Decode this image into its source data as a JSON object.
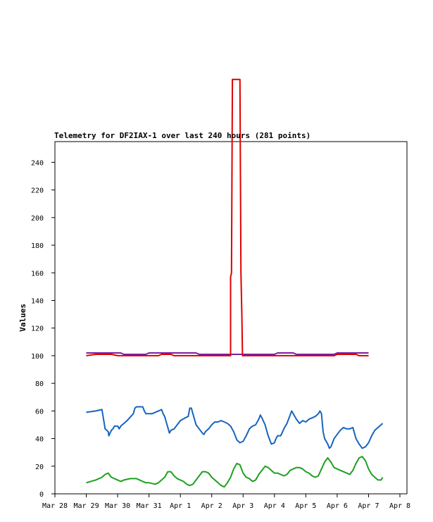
{
  "chart_data": {
    "type": "line",
    "title": "Telemetry for DF2IAX-1 over last 240 hours (281 points)",
    "xlabel": "",
    "ylabel": "Values",
    "x_tick_labels": [
      "Mar 28",
      "Mar 29",
      "Mar 30",
      "Mar 31",
      "Apr 1",
      "Apr 2",
      "Apr 3",
      "Apr 4",
      "Apr 5",
      "Apr 6",
      "Apr 7",
      "Apr 8"
    ],
    "x_unit": "days",
    "xlim": [
      0,
      11
    ],
    "y_ticks": [
      0,
      20,
      40,
      60,
      80,
      100,
      120,
      140,
      160,
      180,
      200,
      220,
      240
    ],
    "ylim": [
      0,
      255
    ],
    "grid": false,
    "legend": "none",
    "series": [
      {
        "color": "#7a1fa2",
        "points": [
          [
            1.0,
            102
          ],
          [
            2.1,
            102
          ],
          [
            2.2,
            101
          ],
          [
            2.9,
            101
          ],
          [
            3.0,
            102
          ],
          [
            4.5,
            102
          ],
          [
            4.6,
            101
          ],
          [
            7.0,
            101
          ],
          [
            7.1,
            102
          ],
          [
            7.6,
            102
          ],
          [
            7.7,
            101
          ],
          [
            8.9,
            101
          ],
          [
            9.0,
            102
          ],
          [
            10.0,
            102
          ]
        ]
      },
      {
        "color": "#e00000",
        "points": [
          [
            1.0,
            100
          ],
          [
            1.3,
            101
          ],
          [
            1.8,
            101
          ],
          [
            2.0,
            100
          ],
          [
            3.3,
            100
          ],
          [
            3.4,
            101
          ],
          [
            3.7,
            101
          ],
          [
            3.8,
            100
          ],
          [
            5.6,
            100
          ],
          [
            5.6,
            157
          ],
          [
            5.63,
            160
          ],
          [
            5.66,
            300
          ],
          [
            5.9,
            300
          ],
          [
            5.93,
            160
          ],
          [
            5.96,
            130
          ],
          [
            5.98,
            100
          ],
          [
            8.9,
            100
          ],
          [
            9.0,
            101
          ],
          [
            9.6,
            101
          ],
          [
            9.7,
            100
          ],
          [
            10.0,
            100
          ]
        ]
      },
      {
        "color": "#1565c0",
        "points": [
          [
            1.0,
            59
          ],
          [
            1.3,
            60
          ],
          [
            1.5,
            61
          ],
          [
            1.6,
            47
          ],
          [
            1.7,
            45
          ],
          [
            1.72,
            42
          ],
          [
            1.8,
            46
          ],
          [
            1.85,
            47
          ],
          [
            1.9,
            49
          ],
          [
            2.0,
            49
          ],
          [
            2.05,
            47
          ],
          [
            2.1,
            49
          ],
          [
            2.3,
            53
          ],
          [
            2.5,
            58
          ],
          [
            2.55,
            62
          ],
          [
            2.6,
            63
          ],
          [
            2.8,
            63
          ],
          [
            2.85,
            60
          ],
          [
            2.9,
            58
          ],
          [
            3.1,
            58
          ],
          [
            3.2,
            59
          ],
          [
            3.3,
            60
          ],
          [
            3.4,
            61
          ],
          [
            3.45,
            58
          ],
          [
            3.5,
            56
          ],
          [
            3.55,
            52
          ],
          [
            3.6,
            48
          ],
          [
            3.65,
            44
          ],
          [
            3.7,
            46
          ],
          [
            3.8,
            47
          ],
          [
            3.9,
            50
          ],
          [
            4.0,
            53
          ],
          [
            4.15,
            55
          ],
          [
            4.25,
            56
          ],
          [
            4.3,
            62
          ],
          [
            4.35,
            62
          ],
          [
            4.4,
            58
          ],
          [
            4.5,
            50
          ],
          [
            4.6,
            47
          ],
          [
            4.7,
            44
          ],
          [
            4.75,
            43
          ],
          [
            4.8,
            45
          ],
          [
            4.9,
            47
          ],
          [
            5.0,
            50
          ],
          [
            5.1,
            52
          ],
          [
            5.2,
            52
          ],
          [
            5.3,
            53
          ],
          [
            5.4,
            52
          ],
          [
            5.5,
            51
          ],
          [
            5.6,
            49
          ],
          [
            5.7,
            45
          ],
          [
            5.8,
            39
          ],
          [
            5.9,
            37
          ],
          [
            6.0,
            38
          ],
          [
            6.1,
            42
          ],
          [
            6.2,
            47
          ],
          [
            6.3,
            49
          ],
          [
            6.4,
            50
          ],
          [
            6.5,
            54
          ],
          [
            6.55,
            57
          ],
          [
            6.6,
            55
          ],
          [
            6.7,
            50
          ],
          [
            6.8,
            42
          ],
          [
            6.9,
            36
          ],
          [
            7.0,
            37
          ],
          [
            7.05,
            40
          ],
          [
            7.1,
            42
          ],
          [
            7.2,
            42
          ],
          [
            7.3,
            47
          ],
          [
            7.4,
            51
          ],
          [
            7.5,
            57
          ],
          [
            7.55,
            60
          ],
          [
            7.6,
            58
          ],
          [
            7.7,
            54
          ],
          [
            7.8,
            51
          ],
          [
            7.9,
            53
          ],
          [
            8.0,
            52
          ],
          [
            8.1,
            54
          ],
          [
            8.2,
            55
          ],
          [
            8.3,
            56
          ],
          [
            8.4,
            58
          ],
          [
            8.45,
            60
          ],
          [
            8.5,
            58
          ],
          [
            8.55,
            45
          ],
          [
            8.6,
            40
          ],
          [
            8.7,
            36
          ],
          [
            8.75,
            33
          ],
          [
            8.8,
            34
          ],
          [
            8.9,
            40
          ],
          [
            9.0,
            43
          ],
          [
            9.1,
            46
          ],
          [
            9.2,
            48
          ],
          [
            9.3,
            47
          ],
          [
            9.4,
            47
          ],
          [
            9.5,
            48
          ],
          [
            9.55,
            44
          ],
          [
            9.6,
            40
          ],
          [
            9.7,
            36
          ],
          [
            9.8,
            33
          ],
          [
            9.9,
            34
          ],
          [
            10.0,
            37
          ],
          [
            10.1,
            42
          ],
          [
            10.2,
            46
          ],
          [
            10.3,
            48
          ],
          [
            10.4,
            50
          ],
          [
            10.45,
            51
          ]
        ]
      },
      {
        "color": "#1ea01e",
        "points": [
          [
            1.0,
            8
          ],
          [
            1.3,
            10
          ],
          [
            1.5,
            12
          ],
          [
            1.6,
            14
          ],
          [
            1.7,
            15
          ],
          [
            1.8,
            12
          ],
          [
            1.9,
            11
          ],
          [
            2.0,
            10
          ],
          [
            2.1,
            9
          ],
          [
            2.2,
            10
          ],
          [
            2.4,
            11
          ],
          [
            2.5,
            11
          ],
          [
            2.6,
            11
          ],
          [
            2.7,
            10
          ],
          [
            2.8,
            9
          ],
          [
            2.9,
            8
          ],
          [
            3.0,
            8
          ],
          [
            3.2,
            7
          ],
          [
            3.3,
            8
          ],
          [
            3.4,
            10
          ],
          [
            3.5,
            12
          ],
          [
            3.55,
            14
          ],
          [
            3.6,
            16
          ],
          [
            3.7,
            16
          ],
          [
            3.8,
            13
          ],
          [
            3.9,
            11
          ],
          [
            4.0,
            10
          ],
          [
            4.1,
            9
          ],
          [
            4.2,
            7
          ],
          [
            4.3,
            6
          ],
          [
            4.4,
            7
          ],
          [
            4.5,
            10
          ],
          [
            4.6,
            13
          ],
          [
            4.7,
            16
          ],
          [
            4.8,
            16
          ],
          [
            4.9,
            15
          ],
          [
            5.0,
            12
          ],
          [
            5.1,
            10
          ],
          [
            5.2,
            8
          ],
          [
            5.3,
            6
          ],
          [
            5.4,
            5
          ],
          [
            5.5,
            8
          ],
          [
            5.6,
            12
          ],
          [
            5.7,
            18
          ],
          [
            5.8,
            22
          ],
          [
            5.9,
            21
          ],
          [
            6.0,
            15
          ],
          [
            6.1,
            12
          ],
          [
            6.2,
            11
          ],
          [
            6.3,
            9
          ],
          [
            6.4,
            10
          ],
          [
            6.5,
            14
          ],
          [
            6.6,
            17
          ],
          [
            6.7,
            20
          ],
          [
            6.8,
            19
          ],
          [
            6.9,
            17
          ],
          [
            7.0,
            15
          ],
          [
            7.1,
            15
          ],
          [
            7.2,
            14
          ],
          [
            7.3,
            13
          ],
          [
            7.4,
            14
          ],
          [
            7.5,
            17
          ],
          [
            7.6,
            18
          ],
          [
            7.7,
            19
          ],
          [
            7.8,
            19
          ],
          [
            7.9,
            18
          ],
          [
            8.0,
            16
          ],
          [
            8.1,
            15
          ],
          [
            8.2,
            13
          ],
          [
            8.3,
            12
          ],
          [
            8.4,
            13
          ],
          [
            8.5,
            18
          ],
          [
            8.6,
            23
          ],
          [
            8.7,
            26
          ],
          [
            8.8,
            23
          ],
          [
            8.9,
            19
          ],
          [
            9.0,
            18
          ],
          [
            9.1,
            17
          ],
          [
            9.2,
            16
          ],
          [
            9.3,
            15
          ],
          [
            9.4,
            14
          ],
          [
            9.5,
            17
          ],
          [
            9.6,
            22
          ],
          [
            9.7,
            26
          ],
          [
            9.8,
            27
          ],
          [
            9.9,
            24
          ],
          [
            10.0,
            18
          ],
          [
            10.1,
            14
          ],
          [
            10.2,
            12
          ],
          [
            10.3,
            10
          ],
          [
            10.4,
            10
          ],
          [
            10.45,
            12
          ]
        ]
      }
    ]
  }
}
